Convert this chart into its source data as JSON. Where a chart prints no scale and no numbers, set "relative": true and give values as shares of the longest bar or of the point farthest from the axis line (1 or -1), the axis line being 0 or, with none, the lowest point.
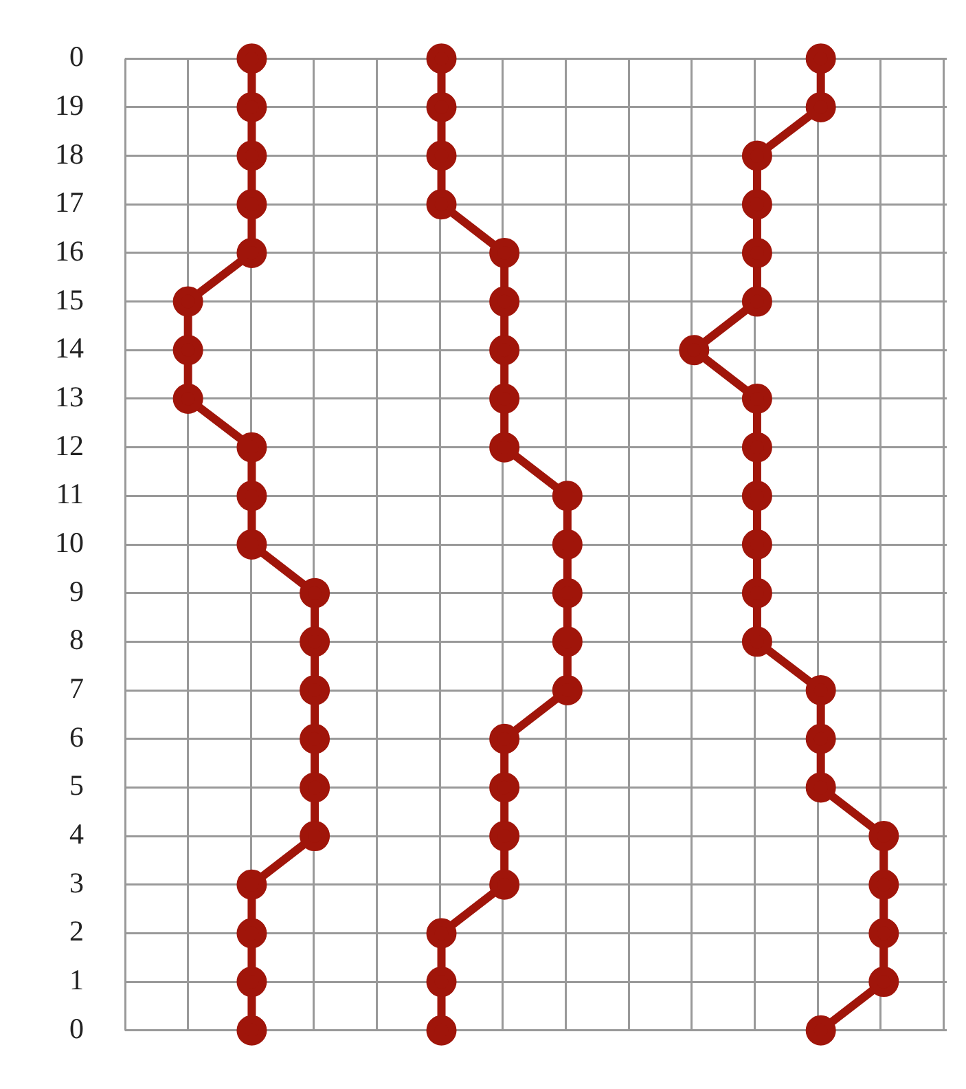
{
  "chart_data": {
    "type": "line",
    "orientation": "horizontal",
    "relative": true,
    "tick_labels": "y",
    "grid": true,
    "legend": false,
    "marker": "circle",
    "line_style": "solid",
    "categories": [
      "0",
      "19",
      "18",
      "17",
      "16",
      "15",
      "14",
      "13",
      "12",
      "11",
      "10",
      "9",
      "8",
      "7",
      "6",
      "5",
      "4",
      "3",
      "2",
      "1",
      "0"
    ],
    "series": [
      {
        "color": "#a0150a",
        "values": [
          0.167,
          0.167,
          0.167,
          0.167,
          0.167,
          0.083,
          0.083,
          0.083,
          0.167,
          0.167,
          0.167,
          0.25,
          0.25,
          0.25,
          0.25,
          0.25,
          0.25,
          0.167,
          0.167,
          0.167,
          0.167
        ]
      },
      {
        "color": "#a0150a",
        "values": [
          0.417,
          0.417,
          0.417,
          0.417,
          0.5,
          0.5,
          0.5,
          0.5,
          0.5,
          0.583,
          0.583,
          0.583,
          0.583,
          0.583,
          0.5,
          0.5,
          0.5,
          0.5,
          0.417,
          0.417,
          0.417
        ]
      },
      {
        "color": "#a0150a",
        "values": [
          0.917,
          0.917,
          0.833,
          0.833,
          0.833,
          0.833,
          0.75,
          0.833,
          0.833,
          0.833,
          0.833,
          0.833,
          0.833,
          0.917,
          0.917,
          0.917,
          1,
          1,
          1,
          1,
          0.917
        ]
      }
    ]
  }
}
